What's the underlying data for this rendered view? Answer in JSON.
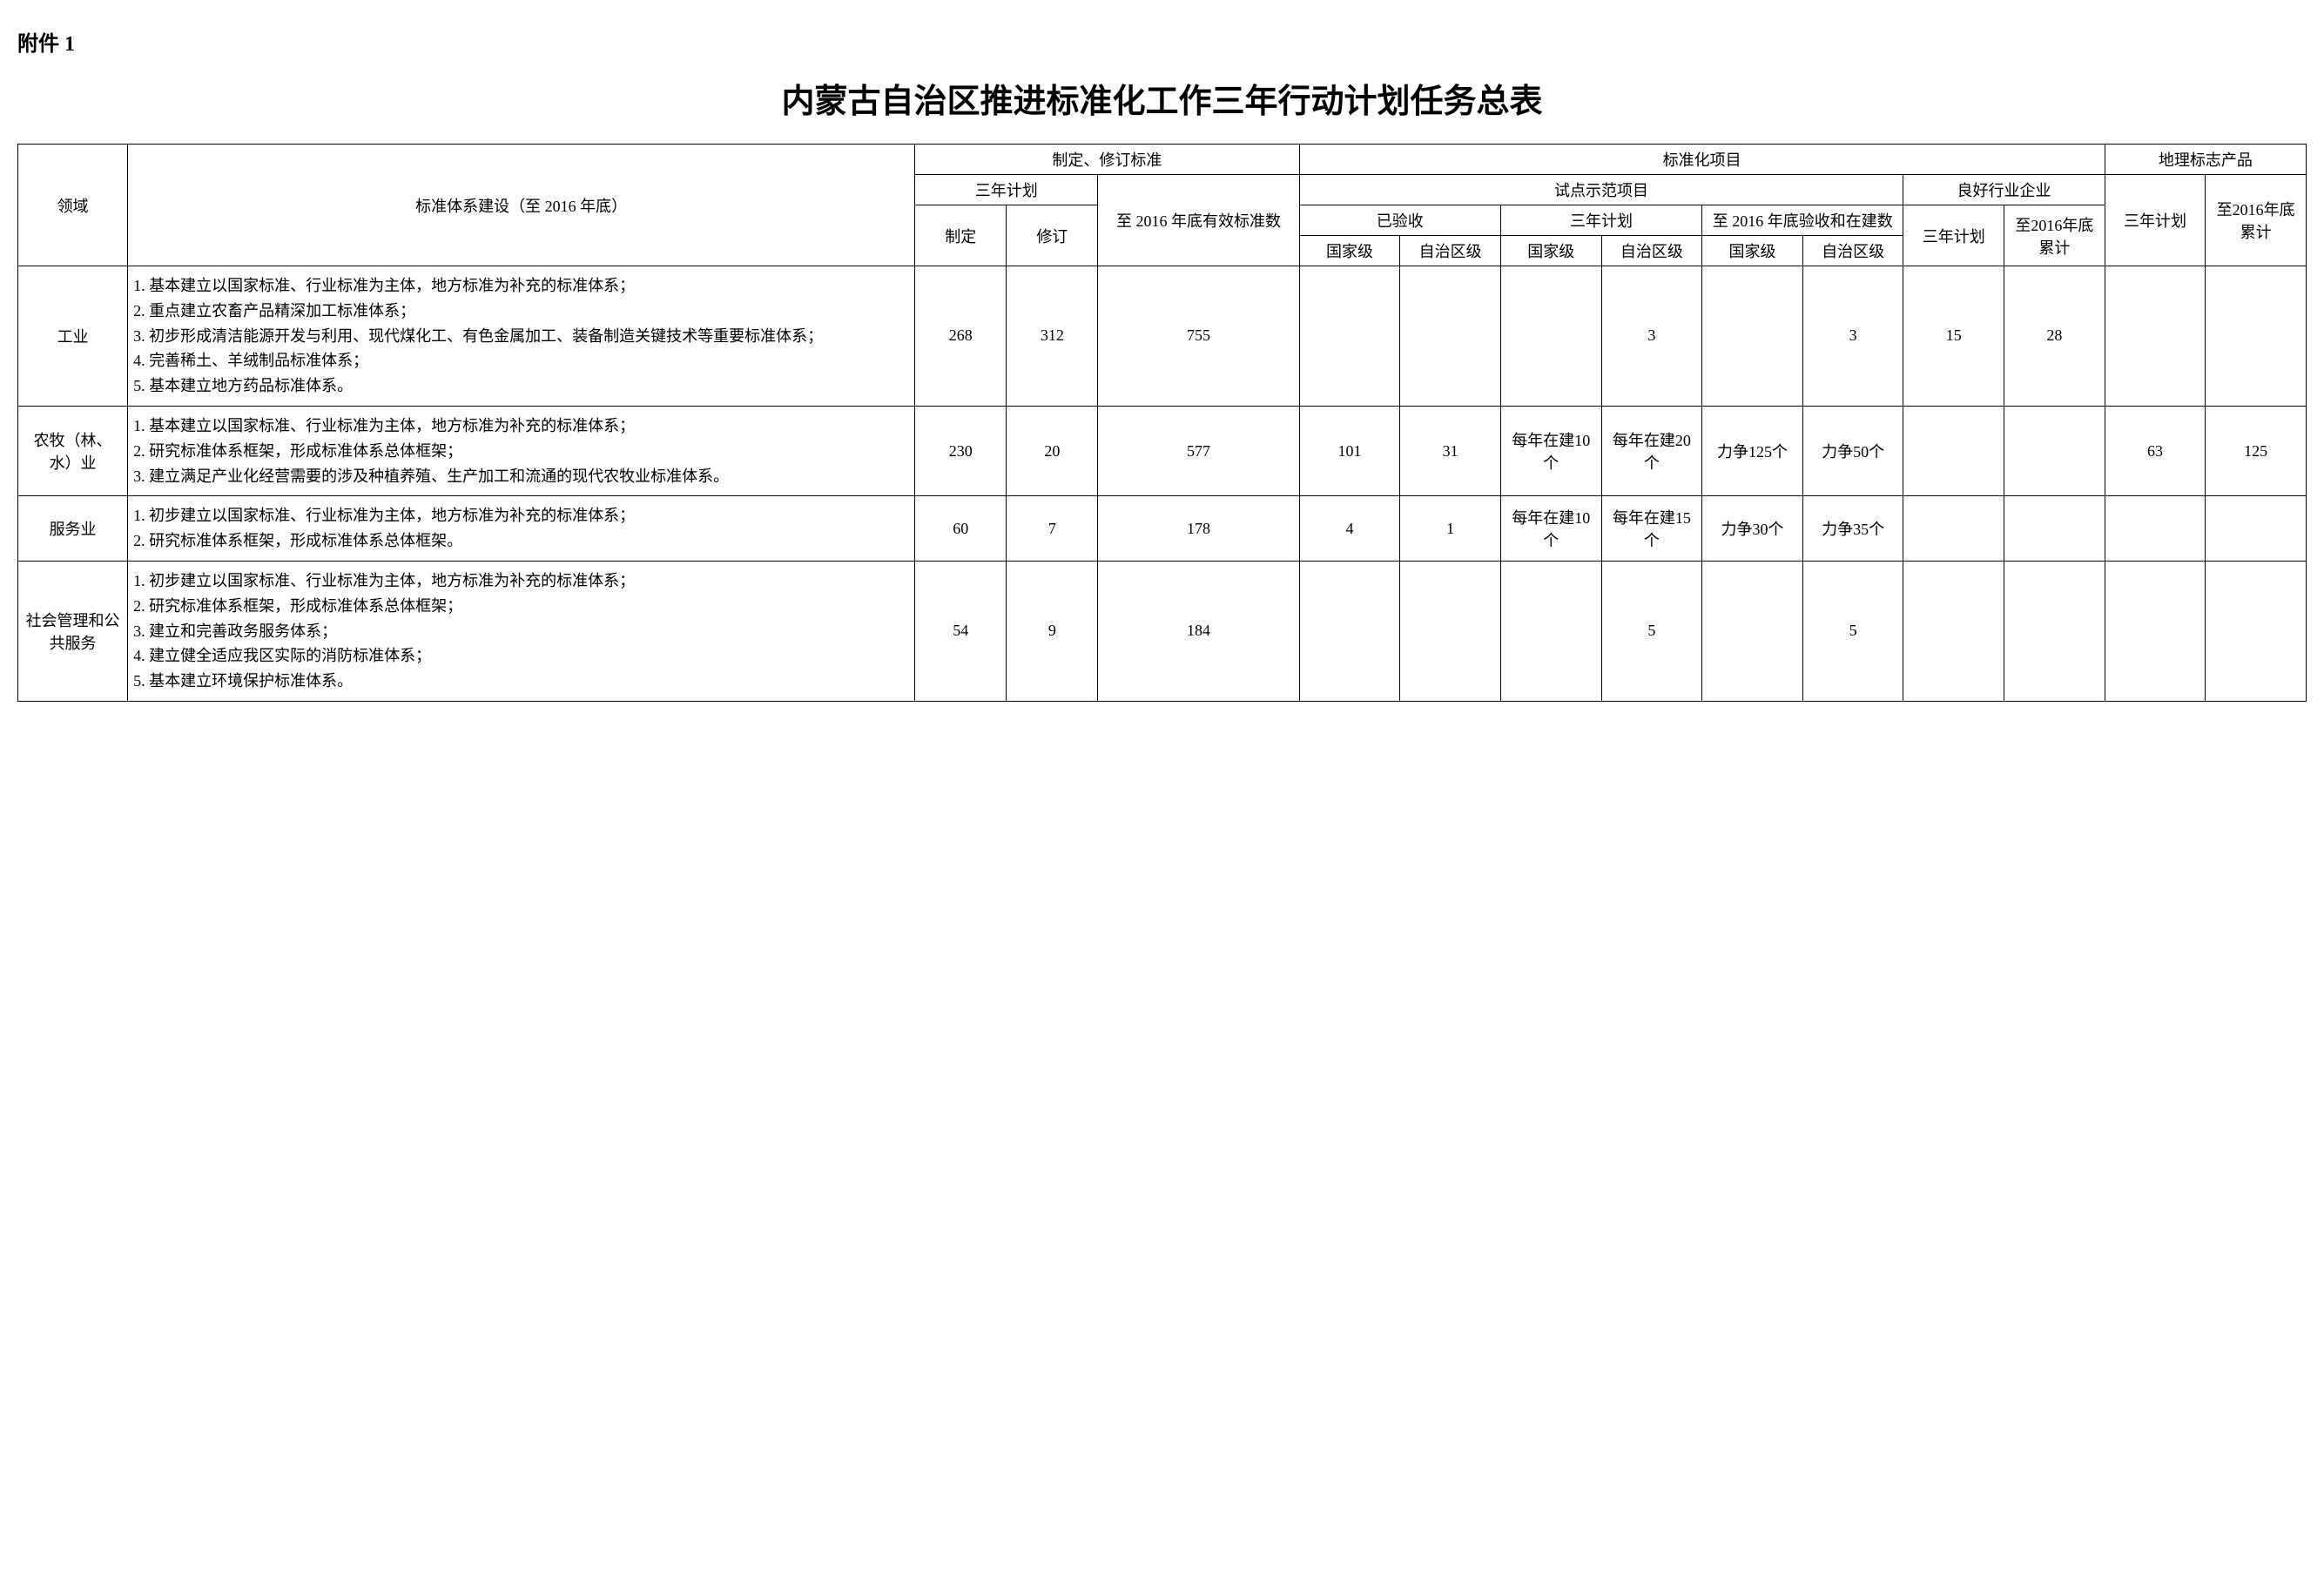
{
  "attachment_label": "附件 1",
  "title": "内蒙古自治区推进标准化工作三年行动计划任务总表",
  "headers": {
    "domain": "领域",
    "system_build": "标准体系建设（至 2016 年底）",
    "std_formulate": "制定、修订标准",
    "three_year_plan": "三年计划",
    "formulate": "制定",
    "revise": "修订",
    "valid_std_2016": "至 2016 年底有效标准数",
    "std_project": "标准化项目",
    "pilot_demo": "试点示范项目",
    "accepted": "已验收",
    "three_year_plan2": "三年计划",
    "by_2016_accept": "至 2016 年底验收和在建数",
    "national": "国家级",
    "autonomous": "自治区级",
    "good_industry": "良好行业企业",
    "three_year_plan3": "三年计划",
    "by_2016_total": "至2016年底累计",
    "geo_product": "地理标志产品",
    "three_year_plan4": "三年计划",
    "by_2016_total2": "至2016年底累计"
  },
  "rows": [
    {
      "domain": "工业",
      "desc": "1. 基本建立以国家标准、行业标准为主体，地方标准为补充的标准体系；\n2. 重点建立农畜产品精深加工标准体系；\n3. 初步形成清洁能源开发与利用、现代煤化工、有色金属加工、装备制造关键技术等重要标准体系；\n4. 完善稀土、羊绒制品标准体系；\n5. 基本建立地方药品标准体系。",
      "formulate": "268",
      "revise": "312",
      "valid_2016": "755",
      "acc_nat": "",
      "acc_auto": "",
      "plan_nat": "",
      "plan_auto": "3",
      "b2016_nat": "",
      "b2016_auto": "3",
      "good_plan": "15",
      "good_total": "28",
      "geo_plan": "",
      "geo_total": ""
    },
    {
      "domain": "农牧（林、水）业",
      "desc": "1. 基本建立以国家标准、行业标准为主体，地方标准为补充的标准体系；\n2. 研究标准体系框架，形成标准体系总体框架；\n3. 建立满足产业化经营需要的涉及种植养殖、生产加工和流通的现代农牧业标准体系。",
      "formulate": "230",
      "revise": "20",
      "valid_2016": "577",
      "acc_nat": "101",
      "acc_auto": "31",
      "plan_nat": "每年在建10个",
      "plan_auto": "每年在建20个",
      "b2016_nat": "力争125个",
      "b2016_auto": "力争50个",
      "good_plan": "",
      "good_total": "",
      "geo_plan": "63",
      "geo_total": "125"
    },
    {
      "domain": "服务业",
      "desc": "1. 初步建立以国家标准、行业标准为主体，地方标准为补充的标准体系；\n2. 研究标准体系框架，形成标准体系总体框架。",
      "formulate": "60",
      "revise": "7",
      "valid_2016": "178",
      "acc_nat": "4",
      "acc_auto": "1",
      "plan_nat": "每年在建10个",
      "plan_auto": "每年在建15个",
      "b2016_nat": "力争30个",
      "b2016_auto": "力争35个",
      "good_plan": "",
      "good_total": "",
      "geo_plan": "",
      "geo_total": ""
    },
    {
      "domain": "社会管理和公共服务",
      "desc": "1. 初步建立以国家标准、行业标准为主体，地方标准为补充的标准体系；\n2. 研究标准体系框架，形成标准体系总体框架；\n3. 建立和完善政务服务体系；\n4. 建立健全适应我区实际的消防标准体系；\n5. 基本建立环境保护标准体系。",
      "formulate": "54",
      "revise": "9",
      "valid_2016": "184",
      "acc_nat": "",
      "acc_auto": "",
      "plan_nat": "",
      "plan_auto": "5",
      "b2016_nat": "",
      "b2016_auto": "5",
      "good_plan": "",
      "good_total": "",
      "geo_plan": "",
      "geo_total": ""
    }
  ]
}
